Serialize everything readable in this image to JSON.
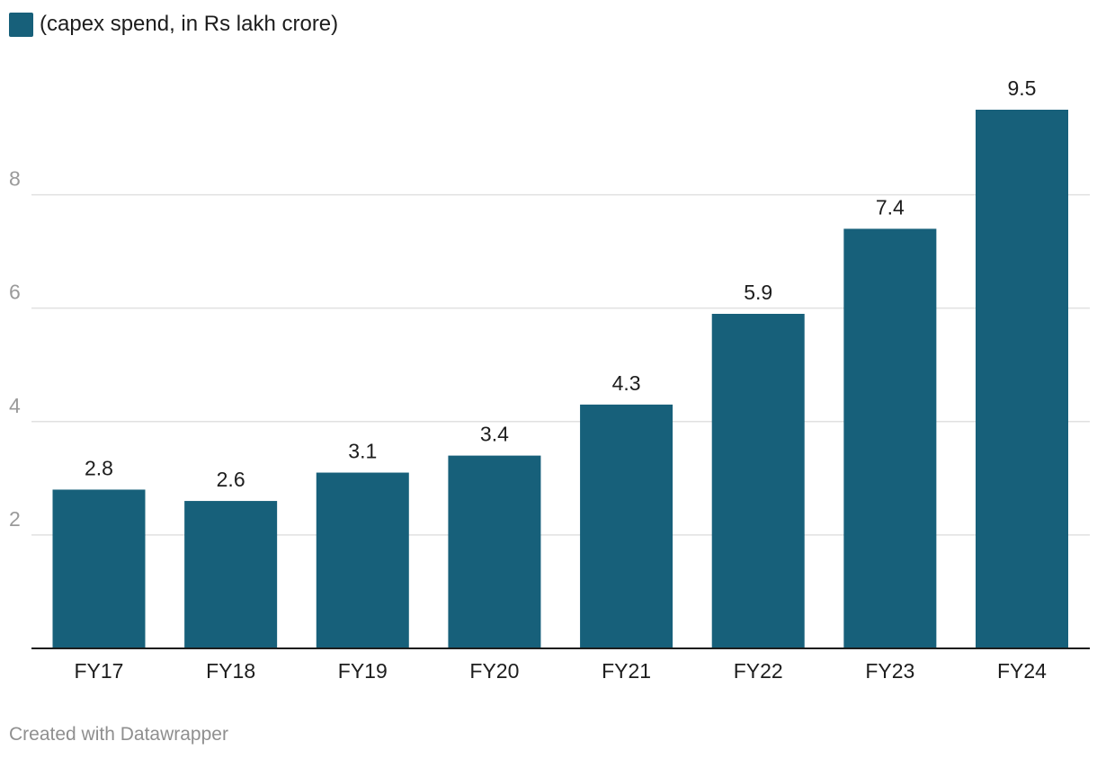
{
  "legend": {
    "label": "(capex spend, in Rs lakh crore)"
  },
  "footer": {
    "credit": "Created with Datawrapper"
  },
  "colors": {
    "bar": "#17607a",
    "grid": "#e0e0e0",
    "axis": "#1d1d1d",
    "tick_label": "#9a9a9a",
    "value_label": "#1d1d1d"
  },
  "chart_data": {
    "type": "bar",
    "title": "",
    "xlabel": "",
    "ylabel": "",
    "categories": [
      "FY17",
      "FY18",
      "FY19",
      "FY20",
      "FY21",
      "FY22",
      "FY23",
      "FY24"
    ],
    "series": [
      {
        "name": "(capex spend, in Rs lakh crore)",
        "values": [
          2.8,
          2.6,
          3.1,
          3.4,
          4.3,
          5.9,
          7.4,
          9.5
        ]
      }
    ],
    "value_labels": [
      "2.8",
      "2.6",
      "3.1",
      "3.4",
      "4.3",
      "5.9",
      "7.4",
      "9.5"
    ],
    "y_ticks": [
      2,
      4,
      6,
      8
    ],
    "y_tick_labels": [
      "2",
      "4",
      "6",
      "8"
    ],
    "ylim": [
      0,
      9.5
    ],
    "grid": true,
    "legend_position": "top-left"
  }
}
